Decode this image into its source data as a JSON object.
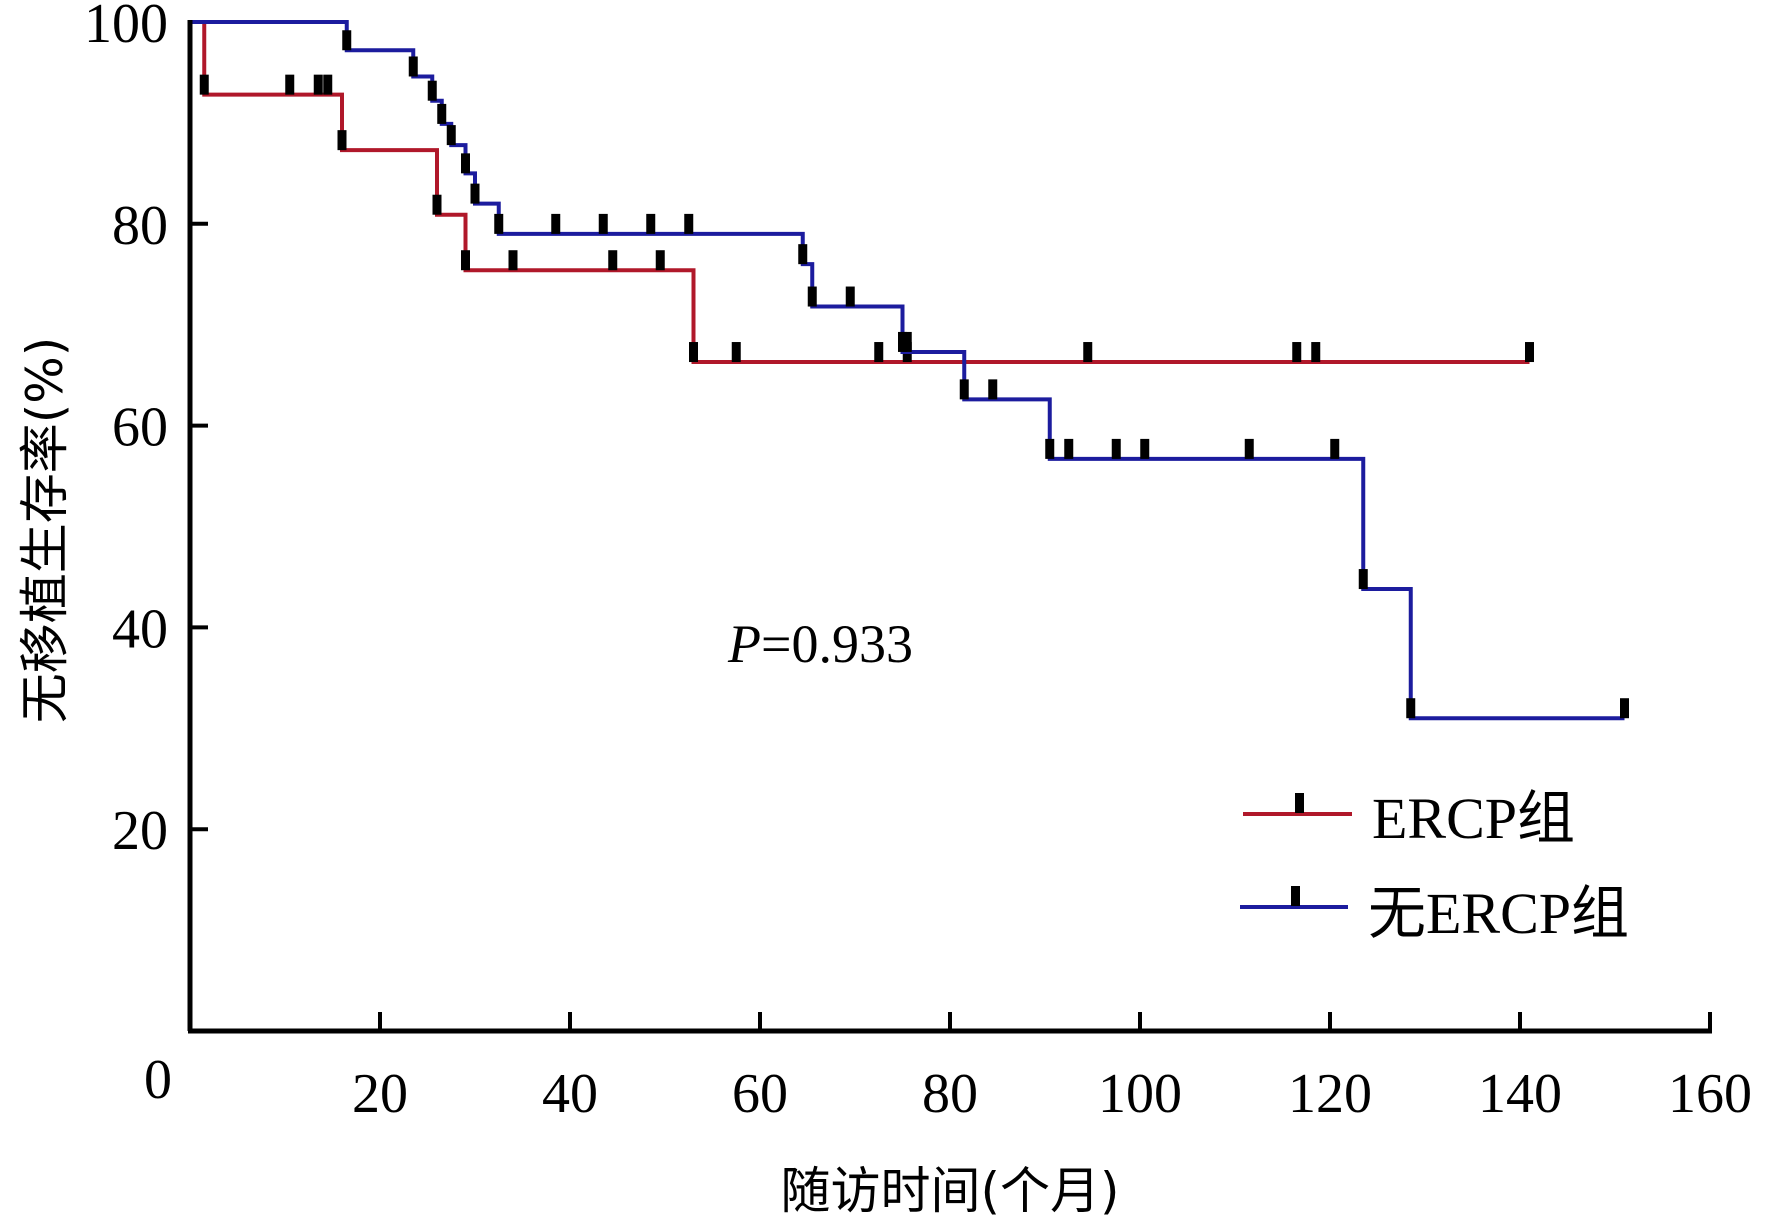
{
  "chart_data": {
    "type": "line",
    "subtype": "kaplan-meier-step",
    "title": "",
    "xlabel": "随访时间(个月)",
    "ylabel": "无移植生存率(%)",
    "xlim": [
      0,
      160
    ],
    "ylim": [
      0,
      100
    ],
    "x_ticks": [
      0,
      20,
      40,
      60,
      80,
      100,
      120,
      140,
      160
    ],
    "y_ticks": [
      20,
      40,
      60,
      80,
      100
    ],
    "grid": false,
    "legend_position": "lower-right",
    "annotation": {
      "text_italic": "P",
      "text_rest": "=0.933",
      "x": 55,
      "y": 38
    },
    "series": [
      {
        "name": "ERCP组",
        "color": "#b0182a",
        "steps": [
          [
            0,
            100
          ],
          [
            1.5,
            92.8
          ],
          [
            16,
            87.3
          ],
          [
            26,
            80.9
          ],
          [
            29,
            75.4
          ],
          [
            53,
            66.3
          ],
          [
            141,
            66.3
          ]
        ],
        "censored": [
          [
            1.5,
            92.8
          ],
          [
            10.5,
            92.8
          ],
          [
            13.5,
            92.8
          ],
          [
            14.5,
            92.8
          ],
          [
            16,
            87.3
          ],
          [
            26,
            80.9
          ],
          [
            29,
            75.4
          ],
          [
            34,
            75.4
          ],
          [
            44.5,
            75.4
          ],
          [
            49.5,
            75.4
          ],
          [
            53,
            66.3
          ],
          [
            57.5,
            66.3
          ],
          [
            72.5,
            66.3
          ],
          [
            75.5,
            66.3
          ],
          [
            94.5,
            66.3
          ],
          [
            116.5,
            66.3
          ],
          [
            118.5,
            66.3
          ],
          [
            141,
            66.3
          ]
        ]
      },
      {
        "name": "无ERCP组",
        "color": "#1c1c9e",
        "steps": [
          [
            0,
            100
          ],
          [
            16.5,
            97.2
          ],
          [
            23.5,
            94.6
          ],
          [
            25.5,
            92.2
          ],
          [
            26.5,
            89.9
          ],
          [
            27.5,
            87.8
          ],
          [
            29,
            85
          ],
          [
            30,
            82
          ],
          [
            32.5,
            79
          ],
          [
            64.5,
            76
          ],
          [
            65.5,
            71.8
          ],
          [
            75,
            67.3
          ],
          [
            81.5,
            62.6
          ],
          [
            90.5,
            56.7
          ],
          [
            123.5,
            43.8
          ],
          [
            128.5,
            31
          ],
          [
            151,
            31
          ]
        ],
        "censored": [
          [
            16.5,
            97.2
          ],
          [
            23.5,
            94.6
          ],
          [
            25.5,
            92.2
          ],
          [
            26.5,
            89.9
          ],
          [
            27.5,
            87.8
          ],
          [
            29,
            85
          ],
          [
            30,
            82
          ],
          [
            32.5,
            79
          ],
          [
            38.5,
            79
          ],
          [
            43.5,
            79
          ],
          [
            48.5,
            79
          ],
          [
            52.5,
            79
          ],
          [
            64.5,
            76
          ],
          [
            65.5,
            71.8
          ],
          [
            69.5,
            71.8
          ],
          [
            75,
            67.3
          ],
          [
            75.5,
            67.3
          ],
          [
            81.5,
            62.6
          ],
          [
            84.5,
            62.6
          ],
          [
            90.5,
            56.7
          ],
          [
            92.5,
            56.7
          ],
          [
            97.5,
            56.7
          ],
          [
            100.5,
            56.7
          ],
          [
            111.5,
            56.7
          ],
          [
            120.5,
            56.7
          ],
          [
            123.5,
            43.8
          ],
          [
            128.5,
            31
          ],
          [
            151,
            31
          ]
        ]
      }
    ]
  },
  "axes": {
    "x_title": "随访时间(个月)",
    "y_title": "无移植生存率(%)",
    "x_tick_labels": [
      "0",
      "20",
      "40",
      "60",
      "80",
      "100",
      "120",
      "140",
      "160"
    ],
    "y_tick_labels": [
      "20",
      "40",
      "60",
      "80",
      "100"
    ]
  },
  "legend": {
    "items": [
      {
        "label": "ERCP组",
        "color": "#b0182a"
      },
      {
        "label": "无ERCP组",
        "color": "#1c1c9e"
      }
    ]
  },
  "annotation": {
    "p_symbol": "P",
    "p_value_text": "=0.933"
  }
}
